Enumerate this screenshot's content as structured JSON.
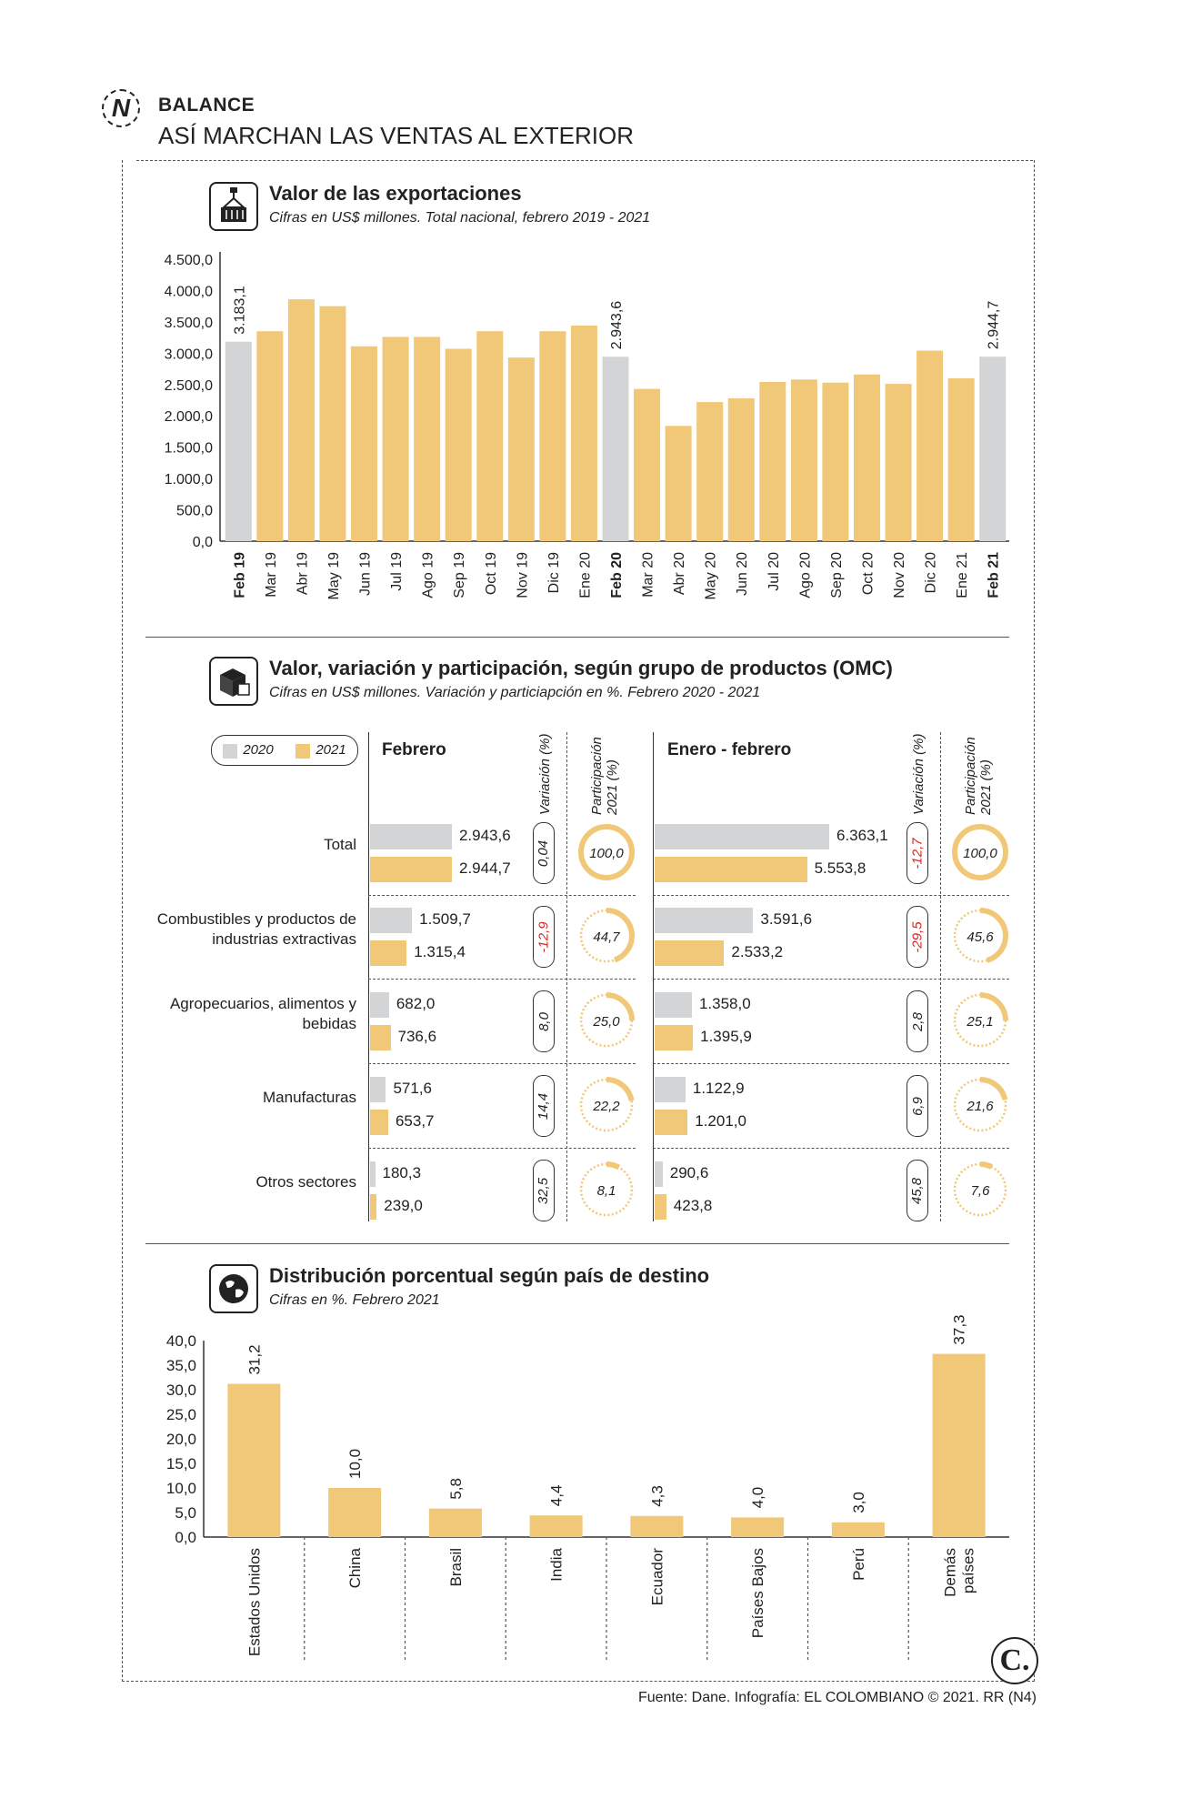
{
  "header": {
    "kicker": "BALANCE",
    "title": "ASÍ MARCHAN LAS VENTAS AL EXTERIOR",
    "badge": "N"
  },
  "colors": {
    "y2020": "#d3d4d6",
    "y2021": "#f0c878",
    "text": "#222222",
    "negative": "#e02020"
  },
  "chart_data": [
    {
      "type": "bar",
      "title": "Valor de las exportaciones",
      "subtitle": "Cifras en US$ millones. Total nacional, febrero 2019 - 2021",
      "categories": [
        "Feb 19",
        "Mar 19",
        "Abr 19",
        "May 19",
        "Jun 19",
        "Jul 19",
        "Ago 19",
        "Sep 19",
        "Oct 19",
        "Nov 19",
        "Dic 19",
        "Ene 20",
        "Feb 20",
        "Mar 20",
        "Abr 20",
        "May 20",
        "Jun 20",
        "Jul 20",
        "Ago 20",
        "Sep 20",
        "Oct 20",
        "Nov 20",
        "Dic 20",
        "Ene 21",
        "Feb 21"
      ],
      "values": [
        3183.1,
        3350,
        3860,
        3750,
        3110,
        3260,
        3260,
        3070,
        3350,
        2930,
        3350,
        3440,
        2943.6,
        2430,
        1840,
        2220,
        2280,
        2540,
        2580,
        2530,
        2660,
        2510,
        3040,
        2600,
        2944.7
      ],
      "highlight": [
        true,
        false,
        false,
        false,
        false,
        false,
        false,
        false,
        false,
        false,
        false,
        false,
        true,
        false,
        false,
        false,
        false,
        false,
        false,
        false,
        false,
        false,
        false,
        false,
        true
      ],
      "data_labels": [
        "3.183,1",
        "",
        "",
        "",
        "",
        "",
        "",
        "",
        "",
        "",
        "",
        "",
        "2.943,6",
        "",
        "",
        "",
        "",
        "",
        "",
        "",
        "",
        "",
        "",
        "",
        "2.944,7"
      ],
      "y_ticks": [
        "0,0",
        "500,0",
        "1.000,0",
        "1.500,0",
        "2.000,0",
        "2.500,0",
        "3.000,0",
        "3.500,0",
        "4.000,0",
        "4.500,0"
      ],
      "ylim": [
        0,
        4500
      ]
    },
    {
      "type": "bar",
      "title": "Valor, variación y participación, según grupo de productos (OMC)",
      "subtitle": "Cifras en US$ millones. Variación y particiapción en %. Febrero 2020 - 2021",
      "legend": [
        "2020",
        "2021"
      ],
      "column_headers": {
        "feb": "Febrero",
        "ytd": "Enero - febrero",
        "variation": "Variación (%)",
        "share": "Participación 2021 (%)"
      },
      "rows": [
        {
          "label": "Total",
          "feb_2020": 2943.6,
          "feb_2021": 2944.7,
          "feb_2020_label": "2.943,6",
          "feb_2021_label": "2.944,7",
          "feb_var": "0,04",
          "feb_share": 100.0,
          "feb_share_label": "100,0",
          "ytd_2020": 6363.1,
          "ytd_2021": 5553.8,
          "ytd_2020_label": "6.363,1",
          "ytd_2021_label": "5.553,8",
          "ytd_var": "-12,7",
          "ytd_share": 100.0,
          "ytd_share_label": "100,0"
        },
        {
          "label": "Combustibles y productos de industrias extractivas",
          "feb_2020": 1509.7,
          "feb_2021": 1315.4,
          "feb_2020_label": "1.509,7",
          "feb_2021_label": "1.315,4",
          "feb_var": "-12,9",
          "feb_share": 44.7,
          "feb_share_label": "44,7",
          "ytd_2020": 3591.6,
          "ytd_2021": 2533.2,
          "ytd_2020_label": "3.591,6",
          "ytd_2021_label": "2.533,2",
          "ytd_var": "-29,5",
          "ytd_share": 45.6,
          "ytd_share_label": "45,6"
        },
        {
          "label": "Agropecuarios, alimentos y bebidas",
          "feb_2020": 682.0,
          "feb_2021": 736.6,
          "feb_2020_label": "682,0",
          "feb_2021_label": "736,6",
          "feb_var": "8,0",
          "feb_share": 25.0,
          "feb_share_label": "25,0",
          "ytd_2020": 1358.0,
          "ytd_2021": 1395.9,
          "ytd_2020_label": "1.358,0",
          "ytd_2021_label": "1.395,9",
          "ytd_var": "2,8",
          "ytd_share": 25.1,
          "ytd_share_label": "25,1"
        },
        {
          "label": "Manufacturas",
          "feb_2020": 571.6,
          "feb_2021": 653.7,
          "feb_2020_label": "571,6",
          "feb_2021_label": "653,7",
          "feb_var": "14,4",
          "feb_share": 22.2,
          "feb_share_label": "22,2",
          "ytd_2020": 1122.9,
          "ytd_2021": 1201.0,
          "ytd_2020_label": "1.122,9",
          "ytd_2021_label": "1.201,0",
          "ytd_var": "6,9",
          "ytd_share": 21.6,
          "ytd_share_label": "21,6"
        },
        {
          "label": "Otros sectores",
          "feb_2020": 180.3,
          "feb_2021": 239.0,
          "feb_2020_label": "180,3",
          "feb_2021_label": "239,0",
          "feb_var": "32,5",
          "feb_share": 8.1,
          "feb_share_label": "8,1",
          "ytd_2020": 290.6,
          "ytd_2021": 423.8,
          "ytd_2020_label": "290,6",
          "ytd_2021_label": "423,8",
          "ytd_var": "45,8",
          "ytd_share": 7.6,
          "ytd_share_label": "7,6"
        }
      ]
    },
    {
      "type": "bar",
      "title": "Distribución porcentual según país de destino",
      "subtitle": "Cifras en %. Febrero 2021",
      "categories": [
        "Estados Unidos",
        "China",
        "Brasil",
        "India",
        "Ecuador",
        "Países Bajos",
        "Perú",
        "Demás países"
      ],
      "values": [
        31.2,
        10.0,
        5.8,
        4.4,
        4.3,
        4.0,
        3.0,
        37.3
      ],
      "data_labels": [
        "31,2",
        "10,0",
        "5,8",
        "4,4",
        "4,3",
        "4,0",
        "3,0",
        "37,3"
      ],
      "y_ticks": [
        "0,0",
        "5,0",
        "10,0",
        "15,0",
        "20,0",
        "25,0",
        "30,0",
        "35,0",
        "40,0"
      ],
      "ylim": [
        0,
        40
      ]
    }
  ],
  "footer": {
    "source": "Fuente: Dane. Infografía: EL COLOMBIANO © 2021. RR (N4)",
    "logo": "C."
  }
}
